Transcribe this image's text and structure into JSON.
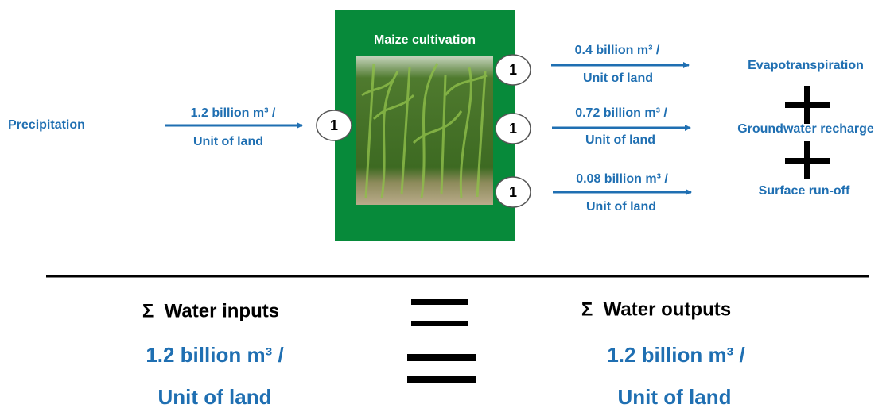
{
  "input": {
    "label": "Precipitation",
    "amount": "1.2 billion m³ /",
    "unit": "Unit of land",
    "node": "1"
  },
  "process": {
    "title": "Maize cultivation"
  },
  "outputs": [
    {
      "label": "Evapotranspiration",
      "amount": "0.4 billion m³ /",
      "unit": "Unit of land",
      "node": "1"
    },
    {
      "label": "Groundwater recharge",
      "amount": "0.72 billion m³ /",
      "unit": "Unit of land",
      "node": "1"
    },
    {
      "label": "Surface run-off",
      "amount": "0.08 billion m³ /",
      "unit": "Unit of land",
      "node": "1"
    }
  ],
  "balance": {
    "inputs": {
      "title": "Σ  Water inputs",
      "amount": "1.2 billion m³ /",
      "unit": "Unit of land"
    },
    "outputs": {
      "title": "Σ  Water outputs",
      "amount": "1.2 billion m³ /",
      "unit": "Unit of land"
    }
  }
}
